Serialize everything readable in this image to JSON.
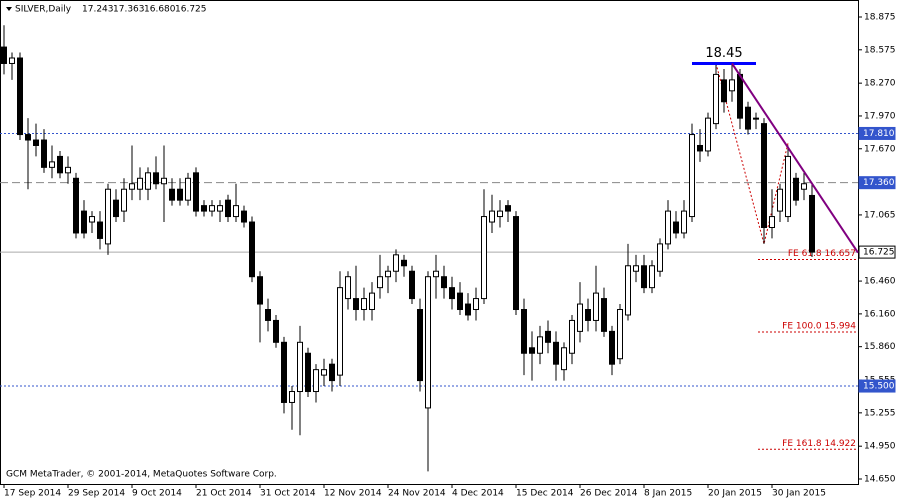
{
  "chart_data": {
    "type": "candlestick",
    "title": "SILVER,Daily",
    "ohlc_header": [
      "17.243",
      "17.363",
      "16.680",
      "16.725"
    ],
    "watermark": "GCM MetaTrader, © 2001-2014, MetaQuotes Software Corp.",
    "categories": [
      "17 Sep 2014",
      null,
      null,
      null,
      null,
      null,
      null,
      null,
      "29 Sep 2014",
      null,
      null,
      null,
      null,
      null,
      null,
      null,
      "9 Oct 2014",
      null,
      null,
      null,
      null,
      null,
      null,
      null,
      "21 Oct 2014",
      null,
      null,
      null,
      null,
      null,
      null,
      null,
      "31 Oct 2014",
      null,
      null,
      null,
      null,
      null,
      null,
      null,
      "12 Nov 2014",
      null,
      null,
      null,
      null,
      null,
      null,
      null,
      "24 Nov 2014",
      null,
      null,
      null,
      null,
      null,
      null,
      null,
      "4 Dec 2014",
      null,
      null,
      null,
      null,
      null,
      null,
      null,
      "15 Dec 2014",
      null,
      null,
      null,
      null,
      null,
      null,
      null,
      "26 Dec 2014",
      null,
      null,
      null,
      null,
      null,
      null,
      null,
      "8 Jan 2015",
      null,
      null,
      null,
      null,
      null,
      null,
      null,
      "20 Jan 2015",
      null,
      null,
      null,
      null,
      null,
      null,
      null,
      "30 Jan 2015",
      null,
      null,
      null,
      null,
      null
    ],
    "candles": [
      [
        18.6,
        18.8,
        18.35,
        18.45
      ],
      [
        18.45,
        18.55,
        18.3,
        18.5
      ],
      [
        18.5,
        18.55,
        17.75,
        17.8
      ],
      [
        17.8,
        17.95,
        17.3,
        17.75
      ],
      [
        17.75,
        17.9,
        17.6,
        17.7
      ],
      [
        17.75,
        17.85,
        17.45,
        17.5
      ],
      [
        17.5,
        17.7,
        17.4,
        17.55
      ],
      [
        17.6,
        17.65,
        17.4,
        17.45
      ],
      [
        17.45,
        17.6,
        17.35,
        17.5
      ],
      [
        17.4,
        17.45,
        16.85,
        16.9
      ],
      [
        17.1,
        17.2,
        16.85,
        16.9
      ],
      [
        17.0,
        17.1,
        16.9,
        17.05
      ],
      [
        17.0,
        17.1,
        16.75,
        16.85
      ],
      [
        16.8,
        17.35,
        16.7,
        17.3
      ],
      [
        17.2,
        17.3,
        17.0,
        17.05
      ],
      [
        17.1,
        17.4,
        17.0,
        17.3
      ],
      [
        17.3,
        17.7,
        17.2,
        17.35
      ],
      [
        17.3,
        17.5,
        17.2,
        17.4
      ],
      [
        17.3,
        17.5,
        17.2,
        17.45
      ],
      [
        17.45,
        17.6,
        17.3,
        17.35
      ],
      [
        17.35,
        17.7,
        17.0,
        17.4
      ],
      [
        17.3,
        17.4,
        17.15,
        17.2
      ],
      [
        17.3,
        17.4,
        17.15,
        17.2
      ],
      [
        17.2,
        17.45,
        17.15,
        17.4
      ],
      [
        17.45,
        17.5,
        17.05,
        17.1
      ],
      [
        17.15,
        17.2,
        17.05,
        17.1
      ],
      [
        17.1,
        17.2,
        17.05,
        17.15
      ],
      [
        17.1,
        17.2,
        17.0,
        17.15
      ],
      [
        17.2,
        17.25,
        17.0,
        17.05
      ],
      [
        17.05,
        17.35,
        17.0,
        17.15
      ],
      [
        17.1,
        17.15,
        16.95,
        17.0
      ],
      [
        17.0,
        17.05,
        16.45,
        16.5
      ],
      [
        16.5,
        16.55,
        15.9,
        16.25
      ],
      [
        16.2,
        16.3,
        16.0,
        16.1
      ],
      [
        16.1,
        16.15,
        15.85,
        15.9
      ],
      [
        15.9,
        15.95,
        15.25,
        15.35
      ],
      [
        15.35,
        15.5,
        15.1,
        15.45
      ],
      [
        15.45,
        16.05,
        15.05,
        15.9
      ],
      [
        15.8,
        15.85,
        15.4,
        15.45
      ],
      [
        15.45,
        15.7,
        15.35,
        15.65
      ],
      [
        15.6,
        15.75,
        15.5,
        15.65
      ],
      [
        15.7,
        15.75,
        15.45,
        15.55
      ],
      [
        15.6,
        16.55,
        15.5,
        16.4
      ],
      [
        16.3,
        16.55,
        16.2,
        16.5
      ],
      [
        16.3,
        16.6,
        16.1,
        16.2
      ],
      [
        16.2,
        16.4,
        16.1,
        16.3
      ],
      [
        16.2,
        16.45,
        16.1,
        16.35
      ],
      [
        16.4,
        16.7,
        16.3,
        16.5
      ],
      [
        16.5,
        16.6,
        16.35,
        16.55
      ],
      [
        16.55,
        16.75,
        16.45,
        16.7
      ],
      [
        16.65,
        16.7,
        16.5,
        16.6
      ],
      [
        16.55,
        16.6,
        16.25,
        16.3
      ],
      [
        16.2,
        16.3,
        15.45,
        15.55
      ],
      [
        15.3,
        16.55,
        14.72,
        16.5
      ],
      [
        16.5,
        16.7,
        16.3,
        16.55
      ],
      [
        16.5,
        16.6,
        16.3,
        16.4
      ],
      [
        16.4,
        16.5,
        16.2,
        16.3
      ],
      [
        16.35,
        16.45,
        16.15,
        16.2
      ],
      [
        16.25,
        16.35,
        16.1,
        16.15
      ],
      [
        16.2,
        16.4,
        16.1,
        16.3
      ],
      [
        16.3,
        17.3,
        16.25,
        17.05
      ],
      [
        17.0,
        17.25,
        16.9,
        17.1
      ],
      [
        17.05,
        17.2,
        16.95,
        17.1
      ],
      [
        17.15,
        17.2,
        17.0,
        17.1
      ],
      [
        17.05,
        17.1,
        16.15,
        16.2
      ],
      [
        16.2,
        16.3,
        15.6,
        15.8
      ],
      [
        15.85,
        16.0,
        15.55,
        15.8
      ],
      [
        15.8,
        16.05,
        15.7,
        15.95
      ],
      [
        16.0,
        16.1,
        15.8,
        15.9
      ],
      [
        15.9,
        16.0,
        15.55,
        15.7
      ],
      [
        15.65,
        15.9,
        15.55,
        15.85
      ],
      [
        15.8,
        16.15,
        15.7,
        16.1
      ],
      [
        16.0,
        16.45,
        15.9,
        16.25
      ],
      [
        16.2,
        16.3,
        16.0,
        16.1
      ],
      [
        16.1,
        16.6,
        16.0,
        16.35
      ],
      [
        16.3,
        16.4,
        15.95,
        16.0
      ],
      [
        16.0,
        16.05,
        15.6,
        15.7
      ],
      [
        15.75,
        16.25,
        15.7,
        16.2
      ],
      [
        16.15,
        16.8,
        16.1,
        16.6
      ],
      [
        16.55,
        16.7,
        16.45,
        16.6
      ],
      [
        16.6,
        16.7,
        16.35,
        16.4
      ],
      [
        16.4,
        16.65,
        16.35,
        16.6
      ],
      [
        16.55,
        16.85,
        16.5,
        16.8
      ],
      [
        16.8,
        17.2,
        16.75,
        17.1
      ],
      [
        17.0,
        17.1,
        16.85,
        16.9
      ],
      [
        16.9,
        17.2,
        16.85,
        17.1
      ],
      [
        17.05,
        17.9,
        17.0,
        17.8
      ],
      [
        17.7,
        17.85,
        17.55,
        17.65
      ],
      [
        17.65,
        18.0,
        17.6,
        17.95
      ],
      [
        17.9,
        18.45,
        17.85,
        18.35
      ],
      [
        18.3,
        18.4,
        18.0,
        18.1
      ],
      [
        18.2,
        18.45,
        18.1,
        18.3
      ],
      [
        18.35,
        18.4,
        17.85,
        17.95
      ],
      [
        18.05,
        18.1,
        17.8,
        17.85
      ],
      [
        17.95,
        18.0,
        17.85,
        17.95
      ],
      [
        17.9,
        17.95,
        16.8,
        16.95
      ],
      [
        16.95,
        17.3,
        16.85,
        17.05
      ],
      [
        17.1,
        17.35,
        17.0,
        17.3
      ],
      [
        17.05,
        17.7,
        17.0,
        17.6
      ],
      [
        17.4,
        17.45,
        17.15,
        17.2
      ],
      [
        17.3,
        17.45,
        17.2,
        17.35
      ],
      [
        17.243,
        17.363,
        16.68,
        16.725
      ]
    ],
    "ylim": [
      14.65,
      18.875
    ],
    "yticks": [
      18.875,
      18.575,
      {
        "value": 18.27,
        "label": "18.270"
      },
      {
        "value": 17.97,
        "label": "17.970"
      },
      {
        "value": 17.67,
        "label": "17.670"
      },
      17.065,
      {
        "value": 16.46,
        "label": "16.460"
      },
      {
        "value": 16.16,
        "label": "16.160"
      },
      {
        "value": 15.86,
        "label": "15.860"
      },
      15.555,
      15.255,
      {
        "value": 14.95,
        "label": "14.950"
      },
      {
        "value": 14.65,
        "label": "14.650"
      }
    ],
    "levels": [
      {
        "value": 17.81,
        "label": "17.810",
        "color": "#3355cc",
        "style": "dotted"
      },
      {
        "value": 17.36,
        "label": "17.360",
        "color": "#888888",
        "style": "dashed"
      },
      {
        "value": 15.5,
        "label": "15.500",
        "color": "#3355cc",
        "style": "dotted"
      },
      {
        "value": 16.725,
        "color": "#aaaaaa",
        "style": "solid"
      }
    ],
    "fibo": [
      {
        "value": 16.657,
        "label": "FE 61.8 16.657"
      },
      {
        "value": 15.994,
        "label": "FE 100.0 15.994"
      },
      {
        "value": 14.922,
        "label": "FE 161.8 14.922"
      }
    ],
    "fibo_path": [
      {
        "index": 89,
        "value": 18.45
      },
      {
        "index": 95,
        "value": 16.8
      },
      {
        "index": 98,
        "value": 17.72
      }
    ],
    "top_line": {
      "value": 18.45,
      "label": "18.45",
      "from": 86,
      "to": 94
    },
    "trendline": [
      {
        "index": 91,
        "value": 18.45
      },
      {
        "index": 106.75,
        "value": 16.72
      }
    ]
  }
}
